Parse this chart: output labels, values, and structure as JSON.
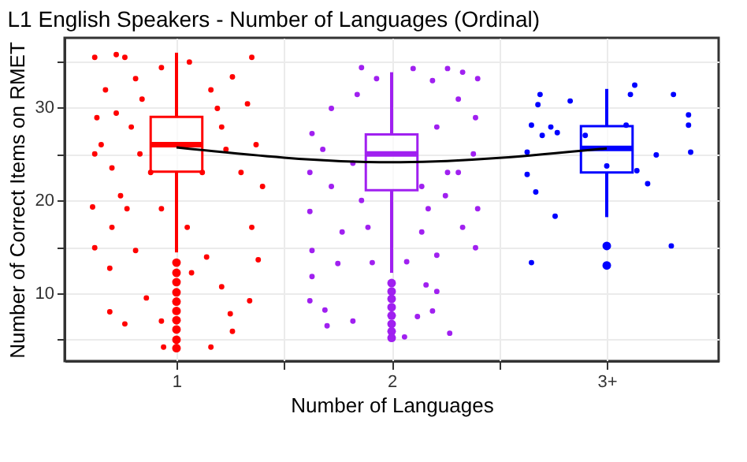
{
  "chart_data": {
    "type": "box",
    "title": "L1 English Speakers - Number of Languages (Ordinal)",
    "xlabel": "Number of Languages",
    "ylabel": "Number of Correct Items on RMET",
    "xlim": [
      0.48,
      3.52
    ],
    "xticks": [
      {
        "value": 1,
        "label": "1"
      },
      {
        "value": 1.5,
        "label": null
      },
      {
        "value": 2,
        "label": "2"
      },
      {
        "value": 2.5,
        "label": null
      },
      {
        "value": 3,
        "label": "3+"
      }
    ],
    "ylim": [
      2.7,
      37.5
    ],
    "yticks": [
      {
        "value": 5,
        "label": null
      },
      10,
      {
        "value": 15,
        "label": null
      },
      20,
      {
        "value": 25,
        "label": null
      },
      30,
      {
        "value": 35,
        "label": null
      }
    ],
    "grid": true,
    "series": [
      {
        "type": "scatter",
        "color": "#ff0000",
        "x": [
          0.62,
          0.72,
          0.76,
          0.93,
          1.06,
          1.35,
          1.26,
          0.81,
          0.67,
          0.63,
          0.62,
          0.61,
          0.62,
          0.69,
          0.69,
          0.76,
          0.86,
          0.93,
          0.94,
          1.16,
          1.26,
          1.25,
          1.34,
          1.38,
          1.35,
          1.4,
          1.37,
          1.33,
          1.21,
          1.12,
          1.05,
          0.93,
          0.83,
          0.74,
          0.7,
          0.77,
          0.65,
          0.72,
          0.84,
          1.16,
          1.07,
          1.14,
          1.21,
          0.81,
          0.88,
          0.7,
          1.23,
          1.3,
          1.19,
          0.79
        ],
        "values": [
          35.4,
          35.7,
          35.4,
          34.3,
          34.9,
          35.4,
          33.3,
          33.1,
          31.9,
          28.9,
          25.0,
          19.3,
          14.9,
          12.7,
          8.0,
          6.7,
          9.5,
          7.0,
          4.2,
          4.2,
          5.9,
          7.8,
          9.2,
          13.6,
          17.1,
          21.5,
          26.0,
          30.4,
          27.9,
          23.0,
          17.1,
          19.1,
          25.0,
          20.5,
          17.1,
          19.1,
          26.0,
          29.4,
          30.9,
          31.9,
          12.2,
          13.9,
          10.7,
          14.6,
          23.0,
          23.5,
          25.5,
          23.0,
          29.9,
          27.9
        ]
      },
      {
        "type": "scatter",
        "color": "#a020f0",
        "x": [
          1.86,
          1.93,
          2.1,
          2.26,
          2.4,
          2.33,
          2.19,
          2.31,
          2.39,
          2.21,
          2.38,
          2.31,
          2.25,
          2.4,
          2.33,
          2.39,
          2.21,
          2.14,
          2.07,
          1.91,
          2.16,
          2.21,
          2.12,
          2.19,
          2.27,
          2.06,
          1.89,
          1.86,
          2.17,
          2.26,
          2.14,
          1.63,
          1.72,
          1.84,
          1.62,
          1.72,
          1.62,
          1.77,
          1.63,
          1.75,
          1.63,
          1.62,
          1.69,
          1.82,
          1.7,
          1.82,
          1.68
        ],
        "values": [
          34.3,
          33.1,
          34.2,
          34.2,
          33.1,
          33.8,
          32.9,
          30.9,
          28.9,
          27.9,
          25.0,
          23.0,
          20.5,
          19.1,
          17.1,
          14.9,
          14.1,
          16.6,
          13.4,
          13.3,
          10.9,
          10.2,
          7.5,
          8.1,
          5.7,
          5.3,
          17.1,
          20.0,
          19.1,
          23.0,
          21.5,
          27.2,
          29.9,
          31.4,
          23.0,
          21.5,
          18.8,
          16.6,
          14.6,
          13.2,
          11.8,
          9.2,
          8.2,
          7.0,
          6.5,
          24.0,
          25.5
        ]
      },
      {
        "type": "scatter",
        "color": "#0000ff",
        "x": [
          2.69,
          2.68,
          2.83,
          2.65,
          2.74,
          2.7,
          2.77,
          2.63,
          2.63,
          2.67,
          2.76,
          2.65,
          3.11,
          3.13,
          3.31,
          3.38,
          3.38,
          3.39,
          3.23,
          3.19,
          3.3,
          3.14,
          3.09,
          2.9,
          3.0
        ],
        "values": [
          31.4,
          30.3,
          30.7,
          28.1,
          27.9,
          27.0,
          27.3,
          25.2,
          22.8,
          20.9,
          18.3,
          13.3,
          31.4,
          32.4,
          31.4,
          29.2,
          28.1,
          25.2,
          24.9,
          21.8,
          15.1,
          23.2,
          28.1,
          27.0,
          23.7
        ]
      },
      {
        "color": "#ff0000",
        "x": [
          1
        ],
        "boxes": [
          {
            "low": 14.4,
            "q1": 23.1,
            "median": 26.0,
            "q3": 29.0,
            "high": 35.9,
            "outliers": [
              13.3,
              12.2,
              11.2,
              10.1,
              9.1,
              8.1,
              7.1,
              6.1,
              5.0,
              4.1
            ]
          }
        ]
      },
      {
        "color": "#a020f0",
        "x": [
          2
        ],
        "boxes": [
          {
            "low": 12.2,
            "q1": 21.1,
            "median": 25.0,
            "q3": 27.1,
            "high": 33.8,
            "outliers": [
              11.1,
              10.2,
              9.4,
              8.5,
              7.6,
              6.7,
              5.9,
              5.2
            ]
          }
        ]
      },
      {
        "color": "#0000ff",
        "x": [
          3
        ],
        "boxes": [
          {
            "low": 18.2,
            "q1": 23.0,
            "median": 25.6,
            "q3": 28.0,
            "high": 32.0,
            "outliers": [
              15.1,
              13.0
            ]
          }
        ]
      },
      {
        "type": "line",
        "color": "#000000",
        "x": [
          1,
          2,
          3
        ],
        "values": [
          25.7,
          24.1,
          25.6
        ]
      }
    ]
  }
}
